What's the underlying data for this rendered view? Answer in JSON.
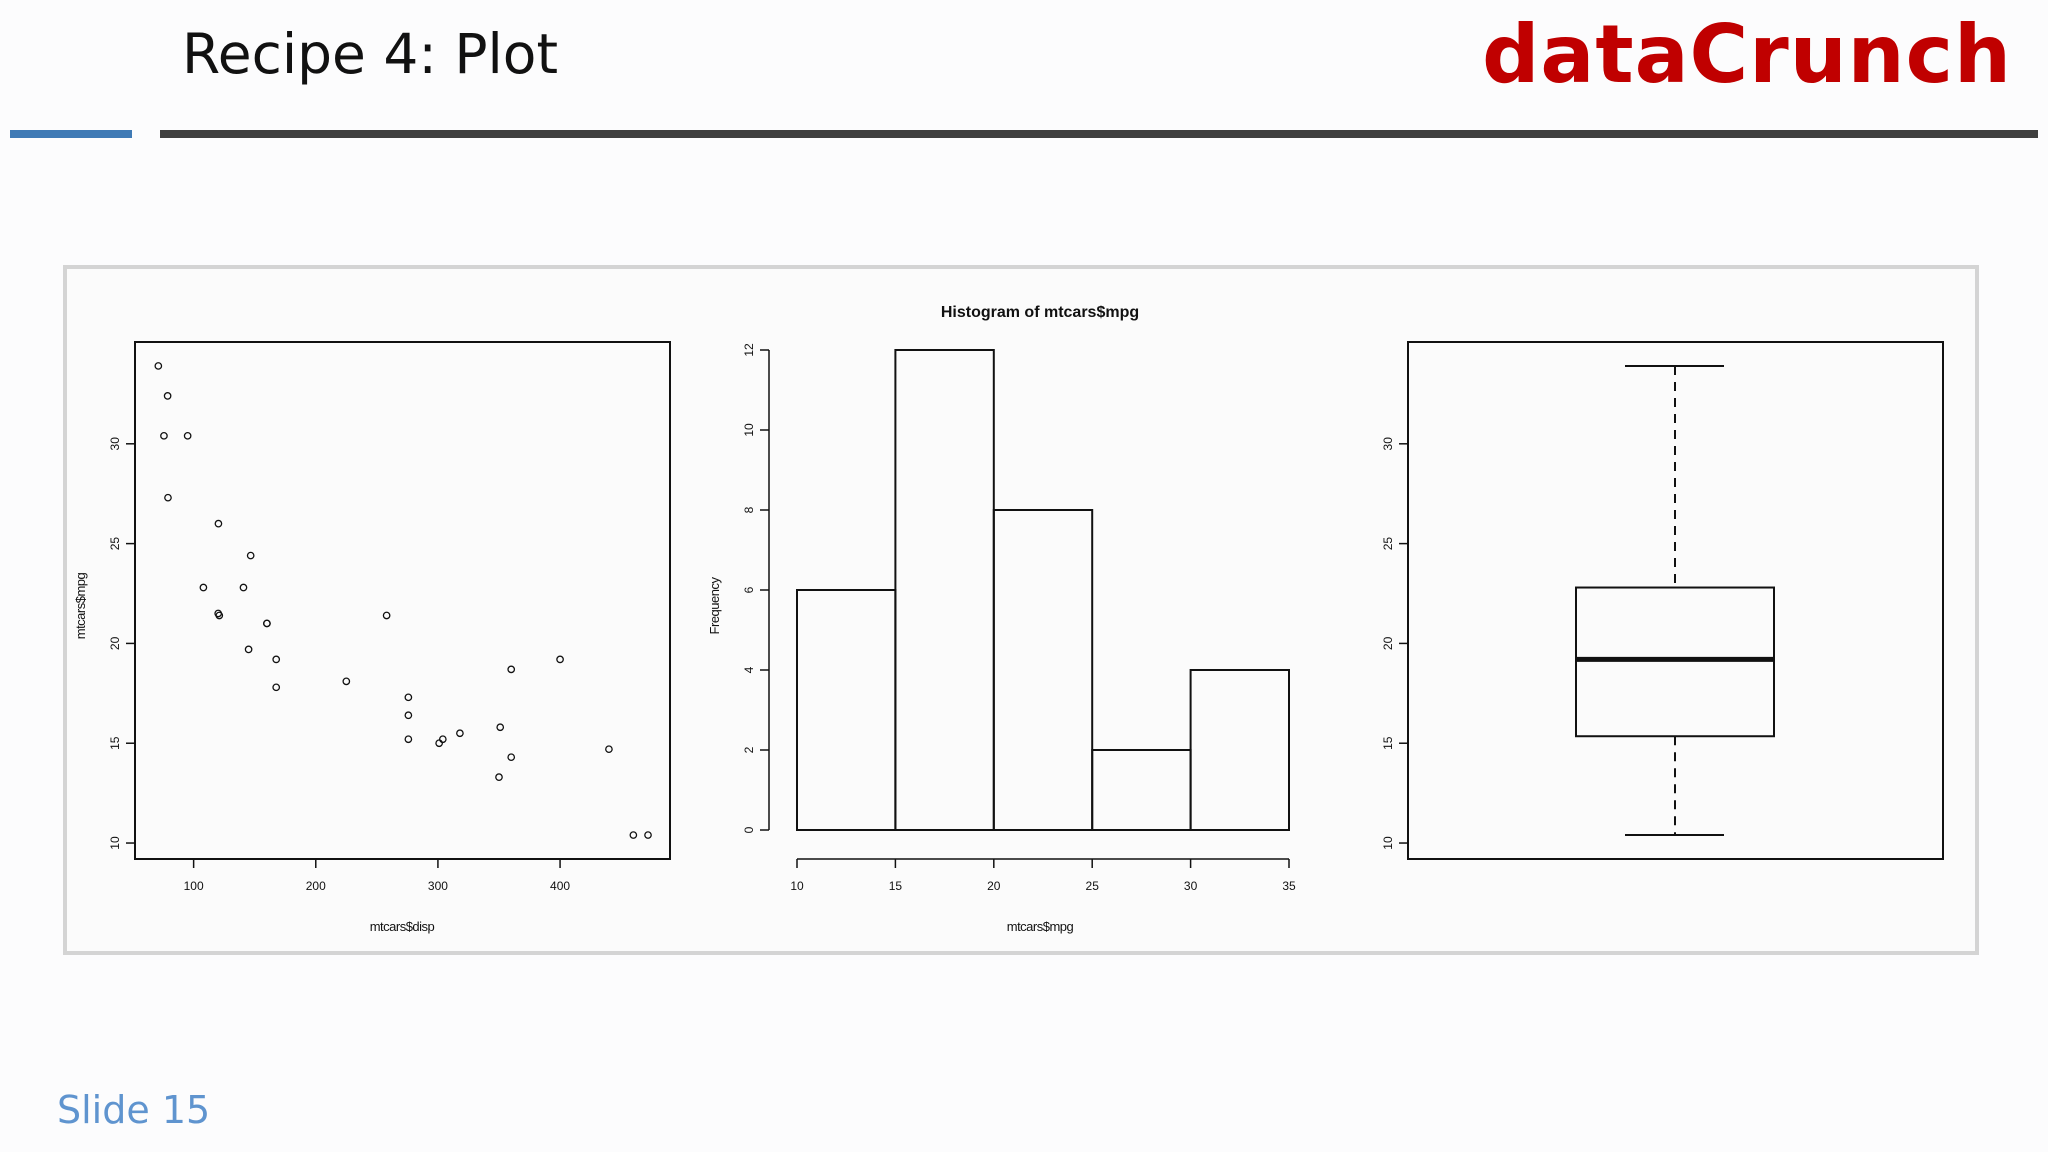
{
  "header": {
    "title": "Recipe 4: Plot",
    "brand": "dataCrunch"
  },
  "footer": {
    "slide_label": "Slide 15"
  },
  "colors": {
    "brand": "#c00000",
    "accent_blue": "#3f7ab5",
    "rule_dark": "#3f3f3f",
    "slide_label": "#5f94cf"
  },
  "chart_data": [
    {
      "type": "scatter",
      "title": "",
      "xlabel": "mtcars$disp",
      "ylabel": "mtcars$mpg",
      "xlim": [
        52,
        490
      ],
      "ylim": [
        9.2,
        35.1
      ],
      "xticks": [
        100,
        200,
        300,
        400
      ],
      "yticks": [
        10,
        15,
        20,
        25,
        30
      ],
      "points": [
        [
          71.1,
          33.9
        ],
        [
          75.7,
          30.4
        ],
        [
          78.7,
          32.4
        ],
        [
          79,
          27.3
        ],
        [
          95.1,
          30.4
        ],
        [
          108,
          22.8
        ],
        [
          120.1,
          21.5
        ],
        [
          120.3,
          26
        ],
        [
          121,
          21.4
        ],
        [
          140.8,
          22.8
        ],
        [
          145,
          19.7
        ],
        [
          146.7,
          24.4
        ],
        [
          160,
          21
        ],
        [
          160,
          21
        ],
        [
          167.6,
          19.2
        ],
        [
          167.6,
          17.8
        ],
        [
          225,
          18.1
        ],
        [
          258,
          21.4
        ],
        [
          275.8,
          16.4
        ],
        [
          275.8,
          17.3
        ],
        [
          275.8,
          15.2
        ],
        [
          301,
          15
        ],
        [
          304,
          15.2
        ],
        [
          318,
          15.5
        ],
        [
          350,
          13.3
        ],
        [
          351,
          15.8
        ],
        [
          360,
          18.7
        ],
        [
          360,
          14.3
        ],
        [
          400,
          19.2
        ],
        [
          440,
          14.7
        ],
        [
          460,
          10.4
        ],
        [
          472,
          10.4
        ]
      ]
    },
    {
      "type": "bar",
      "subtype": "histogram",
      "title": "Histogram of mtcars$mpg",
      "xlabel": "mtcars$mpg",
      "ylabel": "Frequency",
      "bins": [
        [
          10,
          15
        ],
        [
          15,
          20
        ],
        [
          20,
          25
        ],
        [
          25,
          30
        ],
        [
          30,
          35
        ]
      ],
      "values": [
        6,
        12,
        8,
        2,
        4
      ],
      "xticks": [
        10,
        15,
        20,
        25,
        30,
        35
      ],
      "yticks": [
        0,
        2,
        4,
        6,
        8,
        10,
        12
      ],
      "ylim": [
        0,
        12
      ]
    },
    {
      "type": "boxplot",
      "title": "",
      "ylim": [
        9.2,
        35.1
      ],
      "yticks": [
        10,
        15,
        20,
        25,
        30
      ],
      "stats": {
        "min": 10.4,
        "q1": 15.35,
        "median": 19.2,
        "q3": 22.8,
        "max": 33.9
      }
    }
  ]
}
